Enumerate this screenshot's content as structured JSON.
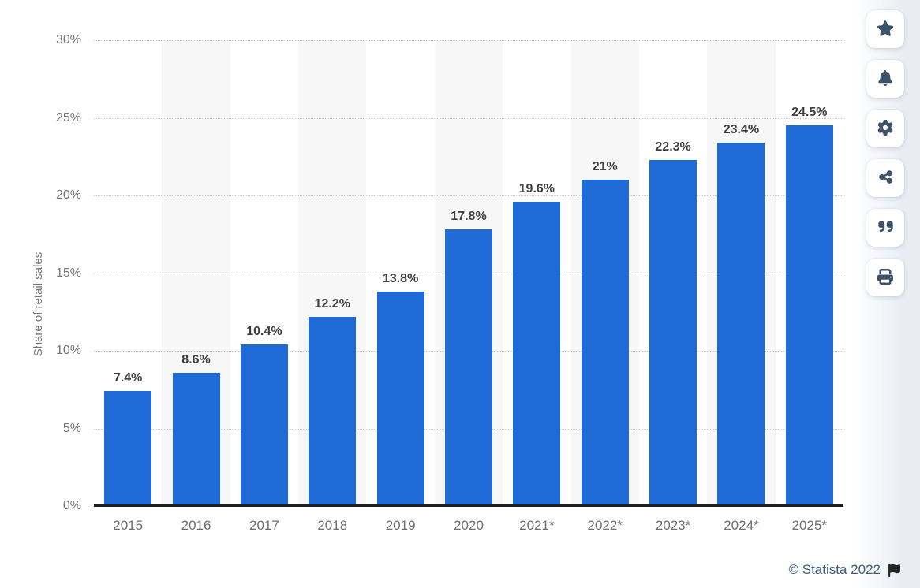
{
  "chart_data": {
    "type": "bar",
    "categories": [
      "2015",
      "2016",
      "2017",
      "2018",
      "2019",
      "2020",
      "2021*",
      "2022*",
      "2023*",
      "2024*",
      "2025*"
    ],
    "values": [
      7.4,
      8.6,
      10.4,
      12.2,
      13.8,
      17.8,
      19.6,
      21,
      22.3,
      23.4,
      24.5
    ],
    "value_labels": [
      "7.4%",
      "8.6%",
      "10.4%",
      "12.2%",
      "13.8%",
      "17.8%",
      "19.6%",
      "21%",
      "22.3%",
      "23.4%",
      "24.5%"
    ],
    "title": "",
    "xlabel": "",
    "ylabel": "Share of retail sales",
    "ylim": [
      0,
      30
    ],
    "ytick_step": 5,
    "yticks": [
      "0%",
      "5%",
      "10%",
      "15%",
      "20%",
      "25%",
      "30%"
    ],
    "grid": "horizontal-dotted",
    "legend": "none",
    "bar_color": "#1e6ad6",
    "stripe_color": "#f7f7f8",
    "striped_category_indices": [
      1,
      3,
      5,
      7,
      9
    ]
  },
  "toolbar": {
    "items": [
      {
        "icon": "star-icon"
      },
      {
        "icon": "bell-icon"
      },
      {
        "icon": "gear-icon"
      },
      {
        "icon": "share-icon"
      },
      {
        "icon": "quote-icon"
      },
      {
        "icon": "printer-icon"
      }
    ]
  },
  "footer": {
    "copyright": "© Statista 2022",
    "flag": "flag-icon"
  }
}
